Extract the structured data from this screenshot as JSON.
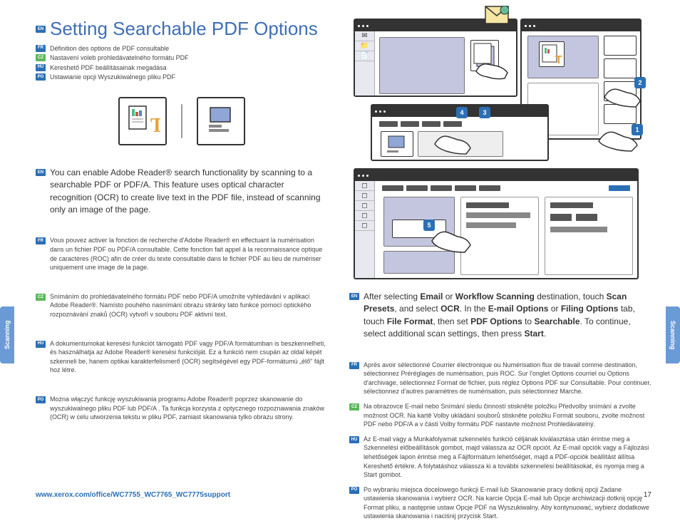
{
  "title": "Setting Searchable PDF Options",
  "lang_tags": {
    "en": "EN",
    "fr": "FR",
    "cz": "CZ",
    "hu": "HU",
    "po": "PO"
  },
  "subtitles": [
    {
      "tag": "fr",
      "text": "Définition des options de PDF consultable"
    },
    {
      "tag": "cz",
      "text": "Nastavení voleb prohledávatelného formátu PDF"
    },
    {
      "tag": "hu",
      "text": "Kereshető PDF beállításainak megadása"
    },
    {
      "tag": "po",
      "text": "Ustawianie opcji Wyszukiwalnego pliku PDF"
    }
  ],
  "main_para": "You can enable Adobe Reader® search functionality by scanning to a searchable PDF or PDF/A. This feature uses optical character recognition (OCR) to create live text in the PDF file, instead of scanning only an image of the page.",
  "left_paras": [
    {
      "tag": "fr",
      "text": "Vous pouvez activer la fonction de recherche d'Adobe Reader® en effectuant la numérisation dans un fichier PDF ou PDF/A consultable. Cette fonction fait appel à la reconnaissance optique de caractères (ROC) afin de créer du texte consultable dans le fichier PDF au lieu de numériser uniquement une image de la page."
    },
    {
      "tag": "cz",
      "text": "Snímáním do prohledávatelného formátu PDF nebo PDF/A umožníte vyhledávání v aplikaci Adobe Reader®. Namísto pouhého nasnímání obrazu stránky tato funkce pomocí optického rozpoznávání znaků (OCR) vytvoří v souboru PDF aktivní text."
    },
    {
      "tag": "hu",
      "text": "A dokumentumokat keresési funkciót támogató PDF vagy PDF/A formátumban is beszkennelheti, és használhatja az Adobe Reader® keresési funkcióját. Ez a funkció nem csupán az oldal képét szkenneli be, hanem optikai karakterfelismerő (OCR) segítségével egy PDF-formátumú „élő\" fájlt hoz létre."
    },
    {
      "tag": "po",
      "text": "Można włączyć funkcję wyszukiwania programu Adobe Reader® poprzez skanowanie do wyszukiwalnego pliku PDF lub PDF/A . Ta funkcja korzysta z optycznego rozpoznawania znaków (OCR) w celu utworzenia tekstu w pliku PDF, zamiast skanowania tylko obrazu strony."
    }
  ],
  "right_para_html": "After selecting <b>Email</b> or <b>Workflow Scanning</b> destination, touch <b>Scan Presets</b>, and select <b>OCR</b>. In the <b>E-mail Options</b> or <b>Filing Options</b> tab, touch <b>File Format</b>, then set <b>PDF Options</b> to <b>Searchable</b>. To continue, select additional scan settings, then press <b>Start</b>.",
  "right_paras": [
    {
      "tag": "fr",
      "text": "Après avoir sélectionné Courrier électronique ou Numérisation flux de travail comme destination, sélectionnez Préréglages de numérisation, puis ROC. Sur l'onglet Options courriel ou Options d'archivage, sélectionnez Format de fichier, puis réglez Options PDF sur Consultable. Pour continuer, sélectionnez d'autres paramètres de numérisation, puis sélectionnez Marche."
    },
    {
      "tag": "cz",
      "text": "Na obrazovce E-mail nebo Snímání sledu činností stiskněte položku Předvolby snímání a zvolte možnost OCR. Na kartě Volby ukládání souborů stiskněte položku Formát souboru, zvolte možnost PDF nebo PDF/A a v části Volby formátu PDF nastavte možnost Prohledávatelný."
    },
    {
      "tag": "hu",
      "text": "Az E-mail vagy a Munkafolyamat szkennelés funkció céljának kiválasztása után érintse meg a Szkennelési előbeállítások gombot, majd válassza az OCR opciót. Az E-mail opciók vagy a Fájlozási lehetőségek lapon érintse meg a Fájlformátum lehetőséget, majd a PDF-opciók beállítást állítsa Kereshető értékre. A folytatáshoz válassza ki a további szkennelési beállításokat, és nyomja meg a Start gombot."
    },
    {
      "tag": "po",
      "text": "Po wybraniu miejsca docelowego funkcji E-mail lub Skanowanie pracy dotknij opcji Zadane ustawienia skanowania i wybierz OCR. Na karcie Opcja E-mail lub Opcje archiwizacji dotknij opcję Format pliku, a następnie ustaw Opcje PDF na Wyszukiwalny. Aby kontynuować, wybierz dodatkowe ustawienia skanowania i naciśnij przycisk Start."
    }
  ],
  "side_tab": "Scanning",
  "footer_link": "www.xerox.com/office/WC7755_WC7765_WC7775support",
  "footer_page": "17",
  "steps": [
    "1",
    "2",
    "3",
    "4",
    "5"
  ],
  "colors": {
    "blue": "#3f6fb5",
    "lilac": "#c4c6e0",
    "orange": "#e6a23c"
  }
}
